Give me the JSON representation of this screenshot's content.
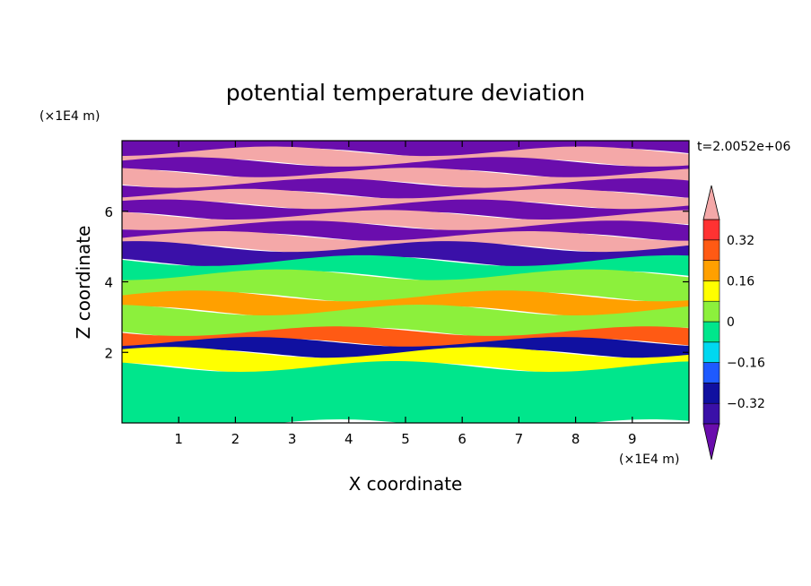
{
  "chart_data": {
    "type": "heatmap",
    "title": "potential temperature deviation",
    "xlabel": "X coordinate",
    "ylabel": "Z coordinate",
    "x_unit_label": "(×1E4 m)",
    "y_unit_label": "(×1E4 m)",
    "time_label": "t=2.0052e+06",
    "xlim": [
      0,
      10
    ],
    "ylim": [
      0,
      8
    ],
    "x_ticks": [
      1,
      2,
      3,
      4,
      5,
      6,
      7,
      8,
      9
    ],
    "x_tick_labels": [
      "1",
      "2",
      "3",
      "4",
      "5",
      "6",
      "7",
      "8",
      "9"
    ],
    "y_ticks": [
      2,
      4,
      6
    ],
    "y_tick_labels": [
      "2",
      "4",
      "6"
    ],
    "colorbar": {
      "levels": [
        -0.4,
        -0.32,
        -0.24,
        -0.16,
        -0.08,
        0,
        0.08,
        0.16,
        0.24,
        0.32,
        0.4
      ],
      "tick_values": [
        -0.32,
        -0.16,
        0,
        0.16,
        0.32
      ],
      "tick_labels": [
        "−0.32",
        "−0.16",
        "0",
        "0.16",
        "0.32"
      ],
      "colors": [
        "#6a0dad",
        "#3a10a8",
        "#1010a0",
        "#1e5aff",
        "#00d8f0",
        "#00e68c",
        "#8cf03c",
        "#ffff00",
        "#ffa000",
        "#ff5a14",
        "#ff3232",
        "#f4a8a8"
      ],
      "extend": "both"
    },
    "layers_z_top_to_bottom": [
      {
        "z": [
          7.7,
          8.0
        ],
        "value": -0.45
      },
      {
        "z": [
          7.4,
          7.7
        ],
        "value": 0.45
      },
      {
        "z": [
          7.1,
          7.4
        ],
        "value": -0.45
      },
      {
        "z": [
          6.8,
          7.1
        ],
        "value": 0.45
      },
      {
        "z": [
          6.5,
          6.8
        ],
        "value": -0.45
      },
      {
        "z": [
          6.2,
          6.5
        ],
        "value": 0.45
      },
      {
        "z": [
          5.9,
          6.2
        ],
        "value": -0.45
      },
      {
        "z": [
          5.6,
          5.9
        ],
        "value": 0.45
      },
      {
        "z": [
          5.3,
          5.6
        ],
        "value": -0.45
      },
      {
        "z": [
          5.0,
          5.3
        ],
        "value": 0.4
      },
      {
        "z": [
          4.6,
          5.0
        ],
        "value": -0.4
      },
      {
        "z": [
          4.2,
          4.6
        ],
        "value": -0.05
      },
      {
        "z": [
          3.6,
          4.2
        ],
        "value": 0.04
      },
      {
        "z": [
          3.2,
          3.6
        ],
        "value": 0.2
      },
      {
        "z": [
          2.6,
          3.2
        ],
        "value": 0.04
      },
      {
        "z": [
          2.3,
          2.6
        ],
        "value": 0.3
      },
      {
        "z": [
          2.0,
          2.3
        ],
        "value": -0.3
      },
      {
        "z": [
          1.6,
          2.0
        ],
        "value": 0.1
      },
      {
        "z": [
          0.0,
          1.6
        ],
        "value": -0.04
      }
    ]
  }
}
